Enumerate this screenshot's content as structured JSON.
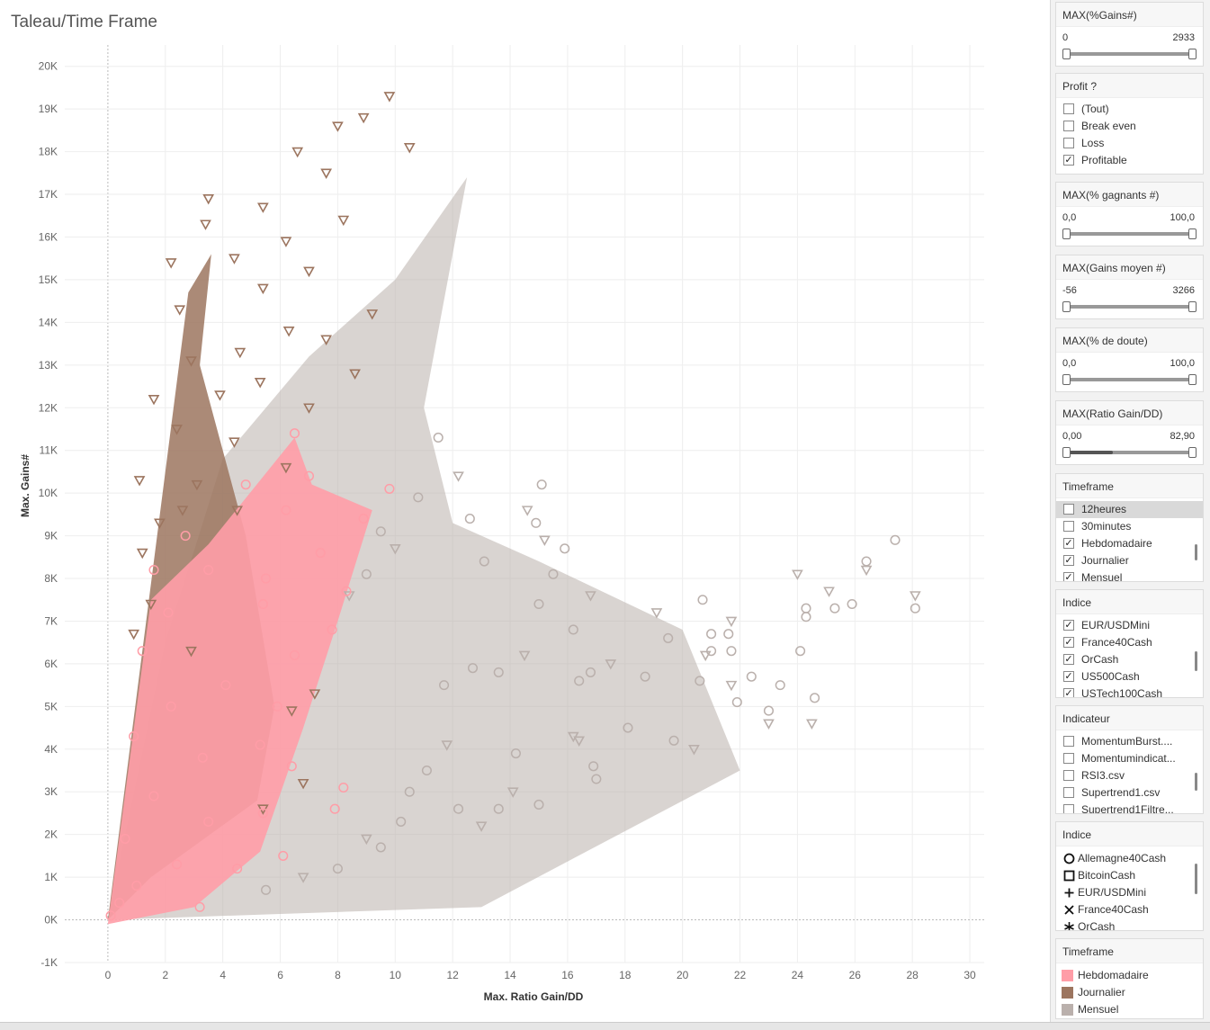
{
  "title": "Taleau/Time Frame",
  "chart_data": {
    "type": "scatter",
    "xlabel": "Max. Ratio Gain/DD",
    "ylabel": "Max. Gains#",
    "xlim": [
      -1.5,
      30.5
    ],
    "ylim": [
      -1000,
      20500
    ],
    "xticks": [
      "0",
      "2",
      "4",
      "6",
      "8",
      "10",
      "12",
      "14",
      "16",
      "18",
      "20",
      "22",
      "24",
      "26",
      "28",
      "30"
    ],
    "yticks": [
      "-1K",
      "0K",
      "1K",
      "2K",
      "3K",
      "4K",
      "5K",
      "6K",
      "7K",
      "8K",
      "9K",
      "10K",
      "11K",
      "12K",
      "13K",
      "14K",
      "15K",
      "16K",
      "17K",
      "18K",
      "19K",
      "20K"
    ],
    "grid": true,
    "legend": "right",
    "series": [
      {
        "name": "Mensuel",
        "color": "#bab0ac",
        "points": [
          [
            27.4,
            8900
          ],
          [
            28.1,
            7600
          ],
          [
            28.1,
            7300
          ],
          [
            26.4,
            8400
          ],
          [
            26.4,
            8200
          ],
          [
            25.9,
            7400
          ],
          [
            25.3,
            7300
          ],
          [
            25.1,
            7700
          ],
          [
            24.3,
            7300
          ],
          [
            24.3,
            7100
          ],
          [
            24.0,
            8100
          ],
          [
            24.1,
            6300
          ],
          [
            24.6,
            5200
          ],
          [
            24.5,
            4600
          ],
          [
            23.4,
            5500
          ],
          [
            23.0,
            4900
          ],
          [
            23.0,
            4600
          ],
          [
            22.4,
            5700
          ],
          [
            21.6,
            6700
          ],
          [
            21.7,
            7000
          ],
          [
            21.0,
            6700
          ],
          [
            21.0,
            6300
          ],
          [
            20.8,
            6200
          ],
          [
            20.6,
            5600
          ],
          [
            21.9,
            5100
          ],
          [
            21.7,
            5500
          ],
          [
            21.7,
            6300
          ],
          [
            20.7,
            7500
          ],
          [
            20.4,
            4000
          ],
          [
            19.7,
            4200
          ],
          [
            19.5,
            6600
          ],
          [
            19.1,
            7200
          ],
          [
            18.7,
            5700
          ],
          [
            18.1,
            4500
          ],
          [
            17.5,
            6000
          ],
          [
            16.8,
            5800
          ],
          [
            16.4,
            5600
          ],
          [
            16.2,
            4300
          ],
          [
            17.0,
            3300
          ],
          [
            16.9,
            3600
          ],
          [
            16.4,
            4200
          ],
          [
            15.0,
            2700
          ],
          [
            14.2,
            3900
          ],
          [
            14.1,
            3000
          ],
          [
            13.6,
            2600
          ],
          [
            13.6,
            5800
          ],
          [
            14.5,
            6200
          ],
          [
            15.0,
            7400
          ],
          [
            15.5,
            8100
          ],
          [
            15.2,
            8900
          ],
          [
            15.9,
            8700
          ],
          [
            16.2,
            6800
          ],
          [
            16.8,
            7600
          ],
          [
            12.6,
            9400
          ],
          [
            13.1,
            8400
          ],
          [
            14.6,
            9600
          ],
          [
            15.1,
            10200
          ],
          [
            14.9,
            9300
          ],
          [
            12.2,
            10400
          ],
          [
            11.5,
            11300
          ],
          [
            10.8,
            9900
          ],
          [
            10.0,
            8700
          ],
          [
            9.5,
            9100
          ],
          [
            9.0,
            8100
          ],
          [
            8.4,
            7600
          ],
          [
            11.1,
            3500
          ],
          [
            12.2,
            2600
          ],
          [
            13.0,
            2200
          ],
          [
            11.7,
            5500
          ],
          [
            12.7,
            5900
          ],
          [
            11.8,
            4100
          ],
          [
            10.5,
            3000
          ],
          [
            10.2,
            2300
          ],
          [
            9.0,
            1900
          ],
          [
            9.5,
            1700
          ],
          [
            8.0,
            1200
          ],
          [
            6.8,
            1000
          ],
          [
            5.5,
            700
          ]
        ]
      },
      {
        "name": "Journalier",
        "color": "#9c755f",
        "points": [
          [
            9.8,
            19300
          ],
          [
            8.9,
            18800
          ],
          [
            8.0,
            18600
          ],
          [
            6.6,
            18000
          ],
          [
            10.5,
            18100
          ],
          [
            7.6,
            17500
          ],
          [
            3.5,
            16900
          ],
          [
            5.4,
            16700
          ],
          [
            3.4,
            16300
          ],
          [
            8.2,
            16400
          ],
          [
            6.2,
            15900
          ],
          [
            4.4,
            15500
          ],
          [
            7.0,
            15200
          ],
          [
            5.4,
            14800
          ],
          [
            9.2,
            14200
          ],
          [
            6.3,
            13800
          ],
          [
            7.6,
            13600
          ],
          [
            4.6,
            13300
          ],
          [
            5.3,
            12600
          ],
          [
            3.9,
            12300
          ],
          [
            7.0,
            12000
          ],
          [
            8.6,
            12800
          ],
          [
            4.4,
            11200
          ],
          [
            6.2,
            10600
          ],
          [
            3.1,
            10200
          ],
          [
            4.5,
            9600
          ],
          [
            2.2,
            15400
          ],
          [
            2.5,
            14300
          ],
          [
            2.9,
            13100
          ],
          [
            1.6,
            12200
          ],
          [
            2.4,
            11500
          ],
          [
            1.1,
            10300
          ],
          [
            1.8,
            9300
          ],
          [
            1.2,
            8600
          ],
          [
            2.6,
            9600
          ],
          [
            1.5,
            7400
          ],
          [
            0.9,
            6700
          ],
          [
            2.9,
            6300
          ],
          [
            6.4,
            4900
          ],
          [
            6.8,
            3200
          ],
          [
            5.4,
            2600
          ],
          [
            7.2,
            5300
          ]
        ]
      },
      {
        "name": "Hebdomadaire",
        "color": "#ff9da7",
        "points": [
          [
            6.5,
            11400
          ],
          [
            7.0,
            10400
          ],
          [
            9.8,
            10100
          ],
          [
            8.9,
            9400
          ],
          [
            6.2,
            9600
          ],
          [
            4.8,
            10200
          ],
          [
            2.7,
            9000
          ],
          [
            3.5,
            8200
          ],
          [
            5.5,
            8000
          ],
          [
            7.4,
            8600
          ],
          [
            8.3,
            7700
          ],
          [
            1.6,
            8200
          ],
          [
            2.1,
            7200
          ],
          [
            5.4,
            7400
          ],
          [
            7.8,
            6800
          ],
          [
            1.2,
            6300
          ],
          [
            6.5,
            6200
          ],
          [
            4.1,
            5500
          ],
          [
            2.2,
            5000
          ],
          [
            5.9,
            5000
          ],
          [
            0.9,
            4300
          ],
          [
            3.3,
            3800
          ],
          [
            5.3,
            4100
          ],
          [
            6.4,
            3600
          ],
          [
            1.6,
            2900
          ],
          [
            3.5,
            2300
          ],
          [
            5.4,
            2500
          ],
          [
            0.6,
            1900
          ],
          [
            2.4,
            1300
          ],
          [
            4.5,
            1200
          ],
          [
            6.1,
            1500
          ],
          [
            8.2,
            3100
          ],
          [
            7.9,
            2600
          ],
          [
            1.0,
            800
          ],
          [
            3.2,
            300
          ],
          [
            0.4,
            400
          ],
          [
            0.1,
            100
          ]
        ]
      }
    ]
  },
  "panel": {
    "f1": {
      "title": "MAX(%Gains#)",
      "min": "0",
      "max": "2933",
      "fill": 0
    },
    "f2": {
      "title": "Profit ?",
      "items": [
        {
          "label": "(Tout)",
          "checked": false
        },
        {
          "label": "Break even",
          "checked": false
        },
        {
          "label": "Loss",
          "checked": false
        },
        {
          "label": "Profitable",
          "checked": true
        }
      ]
    },
    "f3": {
      "title": "MAX(% gagnants #)",
      "min": "0,0",
      "max": "100,0",
      "fill": 0
    },
    "f4": {
      "title": "MAX(Gains moyen #)",
      "min": "-56",
      "max": "3266",
      "fill": 0
    },
    "f5": {
      "title": "MAX(% de doute)",
      "min": "0,0",
      "max": "100,0",
      "fill": 0
    },
    "f6": {
      "title": "MAX(Ratio Gain/DD)",
      "min": "0,00",
      "max": "82,90",
      "fill": 0.35
    },
    "f7": {
      "title": "Timeframe",
      "items": [
        {
          "label": "12heures",
          "checked": false
        },
        {
          "label": "30minutes",
          "checked": false
        },
        {
          "label": "Hebdomadaire",
          "checked": true
        },
        {
          "label": "Journalier",
          "checked": true
        },
        {
          "label": "Mensuel",
          "checked": true
        }
      ]
    },
    "f8": {
      "title": "Indice",
      "items": [
        {
          "label": "EUR/USDMini",
          "checked": true
        },
        {
          "label": "France40Cash",
          "checked": true
        },
        {
          "label": "OrCash",
          "checked": true
        },
        {
          "label": "US500Cash",
          "checked": true
        },
        {
          "label": "USTech100Cash",
          "checked": true
        }
      ]
    },
    "f9": {
      "title": "Indicateur",
      "items": [
        {
          "label": "MomentumBurst....",
          "checked": false
        },
        {
          "label": "Momentumindicat...",
          "checked": false
        },
        {
          "label": "RSI3.csv",
          "checked": false
        },
        {
          "label": "Supertrend1.csv",
          "checked": false
        },
        {
          "label": "Supertrend1Filtre...",
          "checked": false
        }
      ]
    },
    "f10": {
      "title": "Indice",
      "items": [
        {
          "label": "Allemagne40Cash",
          "shape": "circle"
        },
        {
          "label": "BitcoinCash",
          "shape": "square"
        },
        {
          "label": "EUR/USDMini",
          "shape": "plus"
        },
        {
          "label": "France40Cash",
          "shape": "cross"
        },
        {
          "label": "OrCash",
          "shape": "asterisk"
        }
      ]
    },
    "f11": {
      "title": "Timeframe",
      "items": [
        {
          "label": "Hebdomadaire",
          "color": "#ff9da7"
        },
        {
          "label": "Journalier",
          "color": "#9c755f"
        },
        {
          "label": "Mensuel",
          "color": "#bab0ac"
        }
      ]
    }
  }
}
